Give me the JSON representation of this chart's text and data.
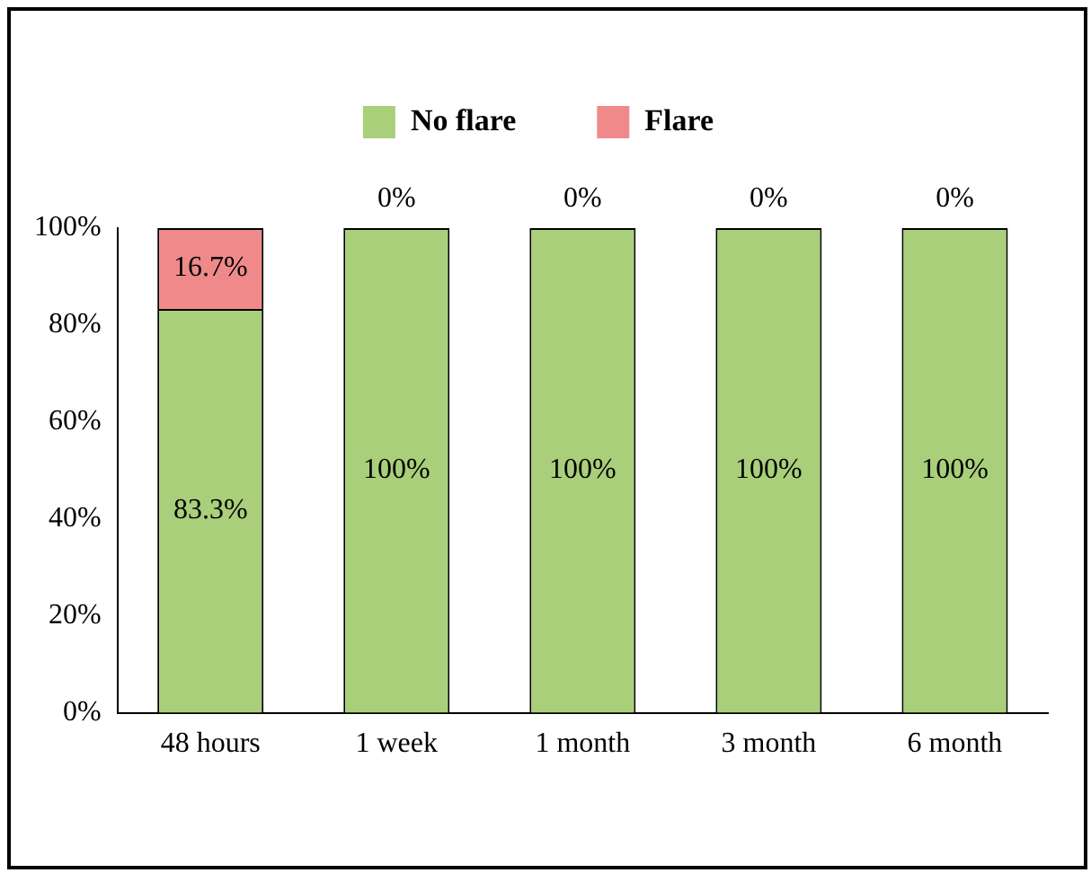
{
  "chart_data": {
    "type": "bar",
    "stacked": true,
    "categories": [
      "48 hours",
      "1 week",
      "1 month",
      "3 month",
      "6 month"
    ],
    "series": [
      {
        "name": "No flare",
        "color": "#a9cf7a",
        "values": [
          83.3,
          100,
          100,
          100,
          100
        ],
        "value_labels": [
          "83.3%",
          "100%",
          "100%",
          "100%",
          "100%"
        ]
      },
      {
        "name": "Flare",
        "color": "#f08a8a",
        "values": [
          16.7,
          0,
          0,
          0,
          0
        ],
        "value_labels": [
          "16.7%",
          "0%",
          "0%",
          "0%",
          "0%"
        ]
      }
    ],
    "ylim": [
      0,
      100
    ],
    "yticks": [
      {
        "value": 0,
        "label": "0%"
      },
      {
        "value": 20,
        "label": "20%"
      },
      {
        "value": 40,
        "label": "40%"
      },
      {
        "value": 60,
        "label": "60%"
      },
      {
        "value": 80,
        "label": "80%"
      },
      {
        "value": 100,
        "label": "100%"
      }
    ],
    "grid": false,
    "legend": "top"
  }
}
